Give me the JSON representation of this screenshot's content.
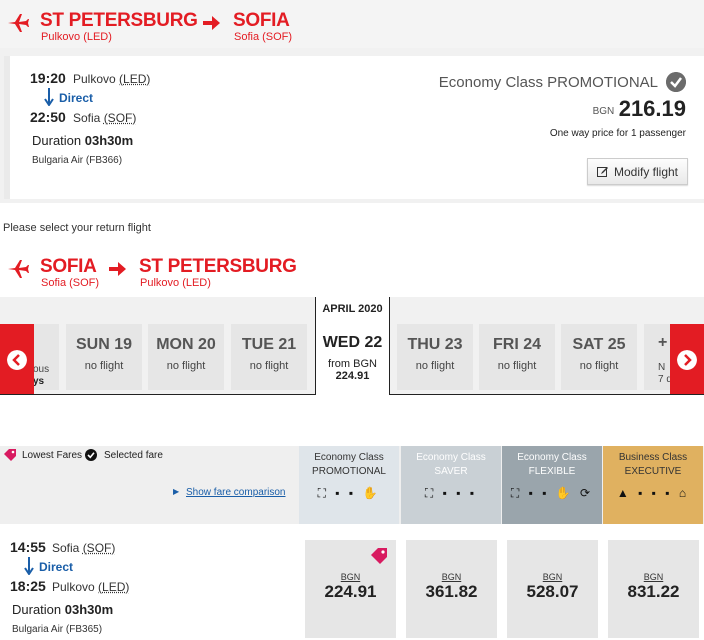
{
  "outbound": {
    "from_city": "ST PETERSBURG",
    "from_airport": "Pulkovo (LED)",
    "to_city": "SOFIA",
    "to_airport": "Sofia (SOF)",
    "depart_time": "19:20",
    "depart_place_prefix": "Pulkovo ",
    "depart_place_code": "(LED)",
    "direct_label": "Direct",
    "arrive_time": "22:50",
    "arrive_place_prefix": "Sofia ",
    "arrive_place_code": "(SOF)",
    "duration_label": "Duration",
    "duration_value": "03h30m",
    "operator": "Bulgaria Air (FB366)",
    "class_title": "Economy Class PROMOTIONAL",
    "currency": "BGN",
    "price": "216.19",
    "price_note": "One way price for 1 passenger",
    "modify_label": "Modify flight"
  },
  "select_prompt": "Please select your return flight",
  "return": {
    "from_city": "SOFIA",
    "from_airport": "Sofia (SOF)",
    "to_city": "ST PETERSBURG",
    "to_airport": "Pulkovo (LED)"
  },
  "calendar": {
    "month": "APRIL 2020",
    "partial_left_line1": "ous",
    "partial_left_line2": "ys",
    "days": [
      {
        "name": "SUN 19",
        "note": "no flight"
      },
      {
        "name": "MON 20",
        "note": "no flight"
      },
      {
        "name": "TUE 21",
        "note": "no flight"
      },
      {
        "name": "WED 22",
        "from_label": "from BGN",
        "price": "224.91",
        "selected": true
      },
      {
        "name": "THU 23",
        "note": "no flight"
      },
      {
        "name": "FRI 24",
        "note": "no flight"
      },
      {
        "name": "SAT 25",
        "note": "no flight"
      }
    ],
    "partial_right_line1": "+",
    "partial_right_line2": "N",
    "partial_right_line3": "7 d"
  },
  "legend": {
    "lowest": "Lowest Fares",
    "selected": "Selected fare",
    "compare_link": "Show fare comparison"
  },
  "fare_classes": [
    {
      "line1": "Economy Class",
      "line2": "PROMOTIONAL",
      "bg": "#dfe5ea",
      "fg": "#333333",
      "icons": "⛶ ▪ ▪ ✋"
    },
    {
      "line1": "Economy Class",
      "line2": "SAVER",
      "bg": "#c9d0d5",
      "fg": "#ffffff",
      "icons": "⛶ ▪ ▪ ▪"
    },
    {
      "line1": "Economy Class",
      "line2": "FLEXIBLE",
      "bg": "#9aa5ac",
      "fg": "#ffffff",
      "icons": "⛶ ▪ ▪ ✋ ⟳"
    },
    {
      "line1": "Business Class",
      "line2": "EXECUTIVE",
      "bg": "#e0b160",
      "fg": "#ffffff",
      "icons": "▲ ▪ ▪ ▪ ⌂"
    }
  ],
  "return_flight": {
    "depart_time": "14:55",
    "depart_place_prefix": "Sofia ",
    "depart_place_code": "(SOF)",
    "direct_label": "Direct",
    "arrive_time": "18:25",
    "arrive_place_prefix": "Pulkovo ",
    "arrive_place_code": "(LED)",
    "duration_label": "Duration",
    "duration_value": "03h30m",
    "operator": "Bulgaria Air (FB365)",
    "prices": [
      {
        "currency": "BGN",
        "value": "224.91"
      },
      {
        "currency": "BGN",
        "value": "361.82"
      },
      {
        "currency": "BGN",
        "value": "528.07"
      },
      {
        "currency": "BGN",
        "value": "831.22"
      }
    ]
  },
  "colors": {
    "brand_red": "#e31c23",
    "link_blue": "#1a5ea8"
  }
}
